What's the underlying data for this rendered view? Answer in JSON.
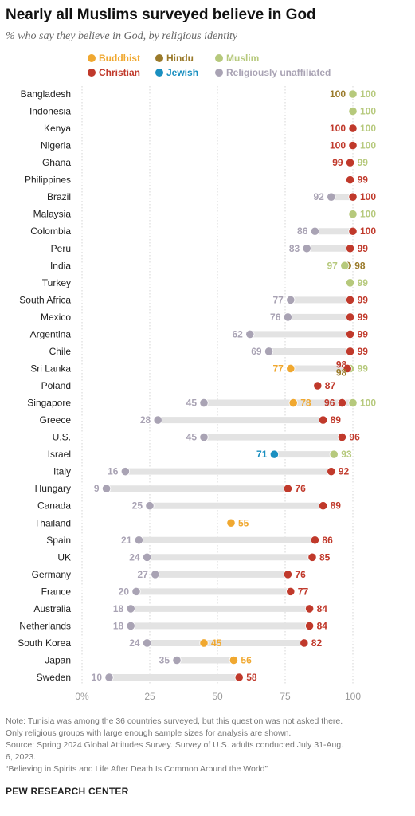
{
  "title": "Nearly all Muslims surveyed believe in God",
  "subtitle": "% who say they believe in God, by religious identity",
  "note_lines": [
    "Note: Tunisia was among the 36 countries surveyed, but this question was not asked there.",
    "Only religious groups with large enough sample sizes for analysis are shown.",
    "Source: Spring 2024 Global Attitudes Survey. Survey of U.S. adults conducted July 31-Aug.",
    "6, 2023.",
    "“Believing in Spirits and Life After Death Is Common Around the World”"
  ],
  "source_org": "PEW RESEARCH CENTER",
  "colors": {
    "Buddhist": "#f0a830",
    "Hindu": "#9a7a2a",
    "Muslim": "#b6c97c",
    "Christian": "#c0392b",
    "Jewish": "#1a8fc0",
    "Religiously unaffiliated": "#a9a3b4",
    "range_bar": "#e3e3e3",
    "gridline": "#d4d4d4"
  },
  "chart_data": {
    "type": "dot",
    "title": "Nearly all Muslims surveyed believe in God",
    "subtitle": "% who say they believe in God, by religious identity",
    "x_ticks": [
      "0%",
      "25",
      "50",
      "75",
      "100"
    ],
    "xlim": [
      0,
      100
    ],
    "grid": true,
    "legend_position": "top",
    "legend": [
      "Buddhist",
      "Hindu",
      "Muslim",
      "Christian",
      "Jewish",
      "Religiously unaffiliated"
    ],
    "categories": [
      "Bangladesh",
      "Indonesia",
      "Kenya",
      "Nigeria",
      "Ghana",
      "Philippines",
      "Brazil",
      "Malaysia",
      "Colombia",
      "Peru",
      "India",
      "Turkey",
      "South Africa",
      "Mexico",
      "Argentina",
      "Chile",
      "Sri Lanka",
      "Poland",
      "Singapore",
      "Greece",
      "U.S.",
      "Israel",
      "Italy",
      "Hungary",
      "Canada",
      "Thailand",
      "Spain",
      "UK",
      "Germany",
      "France",
      "Australia",
      "Netherlands",
      "South Korea",
      "Japan",
      "Sweden"
    ],
    "series": [
      {
        "name": "Buddhist",
        "values": [
          null,
          null,
          null,
          null,
          null,
          null,
          null,
          null,
          null,
          null,
          null,
          null,
          null,
          null,
          null,
          null,
          77,
          null,
          78,
          null,
          null,
          null,
          null,
          null,
          null,
          55,
          null,
          null,
          null,
          null,
          null,
          null,
          45,
          56,
          null
        ]
      },
      {
        "name": "Hindu",
        "values": [
          100,
          null,
          null,
          null,
          null,
          null,
          null,
          null,
          null,
          null,
          98,
          null,
          null,
          null,
          null,
          null,
          98,
          null,
          null,
          null,
          null,
          null,
          null,
          null,
          null,
          null,
          null,
          null,
          null,
          null,
          null,
          null,
          null,
          null,
          null
        ]
      },
      {
        "name": "Muslim",
        "values": [
          100,
          100,
          100,
          100,
          99,
          null,
          null,
          100,
          null,
          null,
          97,
          99,
          null,
          null,
          null,
          null,
          99,
          null,
          100,
          null,
          null,
          93,
          null,
          null,
          null,
          null,
          null,
          null,
          null,
          null,
          null,
          null,
          null,
          null,
          null
        ]
      },
      {
        "name": "Christian",
        "values": [
          null,
          null,
          100,
          100,
          99,
          99,
          100,
          null,
          100,
          99,
          null,
          null,
          99,
          99,
          99,
          99,
          98,
          87,
          96,
          89,
          96,
          null,
          92,
          76,
          89,
          null,
          86,
          85,
          76,
          77,
          84,
          84,
          82,
          null,
          58
        ]
      },
      {
        "name": "Jewish",
        "values": [
          null,
          null,
          null,
          null,
          null,
          null,
          null,
          null,
          null,
          null,
          null,
          null,
          null,
          null,
          null,
          null,
          null,
          null,
          null,
          null,
          null,
          71,
          null,
          null,
          null,
          null,
          null,
          null,
          null,
          null,
          null,
          null,
          null,
          null,
          null
        ]
      },
      {
        "name": "Religiously unaffiliated",
        "values": [
          null,
          null,
          null,
          null,
          null,
          null,
          92,
          null,
          86,
          83,
          null,
          null,
          77,
          76,
          62,
          69,
          null,
          null,
          45,
          28,
          45,
          null,
          16,
          9,
          25,
          null,
          21,
          24,
          27,
          20,
          18,
          18,
          24,
          35,
          10
        ]
      }
    ],
    "label_values": [
      [
        {
          "s": "Hindu",
          "v": "100",
          "side": "left"
        },
        {
          "s": "Muslim",
          "v": "100",
          "side": "right"
        }
      ],
      [
        {
          "s": "Muslim",
          "v": "100",
          "side": "right"
        }
      ],
      [
        {
          "s": "Christian",
          "v": "100",
          "side": "left"
        },
        {
          "s": "Muslim",
          "v": "100",
          "side": "right"
        }
      ],
      [
        {
          "s": "Christian",
          "v": "100",
          "side": "left"
        },
        {
          "s": "Muslim",
          "v": "100",
          "side": "right"
        }
      ],
      [
        {
          "s": "Christian",
          "v": "99",
          "side": "left"
        },
        {
          "s": "Muslim",
          "v": "99",
          "side": "right"
        }
      ],
      [
        {
          "s": "Christian",
          "v": "99",
          "side": "right"
        }
      ],
      [
        {
          "s": "Religiously unaffiliated",
          "v": "92",
          "side": "left"
        },
        {
          "s": "Christian",
          "v": "100",
          "side": "right"
        }
      ],
      [
        {
          "s": "Muslim",
          "v": "100",
          "side": "right"
        }
      ],
      [
        {
          "s": "Religiously unaffiliated",
          "v": "86",
          "side": "left"
        },
        {
          "s": "Christian",
          "v": "100",
          "side": "right"
        }
      ],
      [
        {
          "s": "Religiously unaffiliated",
          "v": "83",
          "side": "left"
        },
        {
          "s": "Christian",
          "v": "99",
          "side": "right"
        }
      ],
      [
        {
          "s": "Muslim",
          "v": "97",
          "side": "left"
        },
        {
          "s": "Hindu",
          "v": "98",
          "side": "right"
        }
      ],
      [
        {
          "s": "Muslim",
          "v": "99",
          "side": "right"
        }
      ],
      [
        {
          "s": "Religiously unaffiliated",
          "v": "77",
          "side": "left"
        },
        {
          "s": "Christian",
          "v": "99",
          "side": "right"
        }
      ],
      [
        {
          "s": "Religiously unaffiliated",
          "v": "76",
          "side": "left"
        },
        {
          "s": "Christian",
          "v": "99",
          "side": "right"
        }
      ],
      [
        {
          "s": "Religiously unaffiliated",
          "v": "62",
          "side": "left"
        },
        {
          "s": "Christian",
          "v": "99",
          "side": "right"
        }
      ],
      [
        {
          "s": "Religiously unaffiliated",
          "v": "69",
          "side": "left"
        },
        {
          "s": "Christian",
          "v": "99",
          "side": "right"
        }
      ],
      [
        {
          "s": "Buddhist",
          "v": "77",
          "side": "left"
        },
        {
          "s": "Christian",
          "v": "98",
          "side": "above"
        },
        {
          "s": "Hindu",
          "v": "98",
          "side": "below"
        },
        {
          "s": "Muslim",
          "v": "99",
          "side": "right"
        }
      ],
      [
        {
          "s": "Christian",
          "v": "87",
          "side": "right"
        }
      ],
      [
        {
          "s": "Religiously unaffiliated",
          "v": "45",
          "side": "left"
        },
        {
          "s": "Buddhist",
          "v": "78",
          "side": "right"
        },
        {
          "s": "Christian",
          "v": "96",
          "side": "left"
        },
        {
          "s": "Muslim",
          "v": "100",
          "side": "right"
        }
      ],
      [
        {
          "s": "Religiously unaffiliated",
          "v": "28",
          "side": "left"
        },
        {
          "s": "Christian",
          "v": "89",
          "side": "right"
        }
      ],
      [
        {
          "s": "Religiously unaffiliated",
          "v": "45",
          "side": "left"
        },
        {
          "s": "Christian",
          "v": "96",
          "side": "right"
        }
      ],
      [
        {
          "s": "Jewish",
          "v": "71",
          "side": "left"
        },
        {
          "s": "Muslim",
          "v": "93",
          "side": "right"
        }
      ],
      [
        {
          "s": "Religiously unaffiliated",
          "v": "16",
          "side": "left"
        },
        {
          "s": "Christian",
          "v": "92",
          "side": "right"
        }
      ],
      [
        {
          "s": "Religiously unaffiliated",
          "v": "9",
          "side": "left"
        },
        {
          "s": "Christian",
          "v": "76",
          "side": "right"
        }
      ],
      [
        {
          "s": "Religiously unaffiliated",
          "v": "25",
          "side": "left"
        },
        {
          "s": "Christian",
          "v": "89",
          "side": "right"
        }
      ],
      [
        {
          "s": "Buddhist",
          "v": "55",
          "side": "right"
        }
      ],
      [
        {
          "s": "Religiously unaffiliated",
          "v": "21",
          "side": "left"
        },
        {
          "s": "Christian",
          "v": "86",
          "side": "right"
        }
      ],
      [
        {
          "s": "Religiously unaffiliated",
          "v": "24",
          "side": "left"
        },
        {
          "s": "Christian",
          "v": "85",
          "side": "right"
        }
      ],
      [
        {
          "s": "Religiously unaffiliated",
          "v": "27",
          "side": "left"
        },
        {
          "s": "Christian",
          "v": "76",
          "side": "right"
        }
      ],
      [
        {
          "s": "Religiously unaffiliated",
          "v": "20",
          "side": "left"
        },
        {
          "s": "Christian",
          "v": "77",
          "side": "right"
        }
      ],
      [
        {
          "s": "Religiously unaffiliated",
          "v": "18",
          "side": "left"
        },
        {
          "s": "Christian",
          "v": "84",
          "side": "right"
        }
      ],
      [
        {
          "s": "Religiously unaffiliated",
          "v": "18",
          "side": "left"
        },
        {
          "s": "Christian",
          "v": "84",
          "side": "right"
        }
      ],
      [
        {
          "s": "Religiously unaffiliated",
          "v": "24",
          "side": "left"
        },
        {
          "s": "Buddhist",
          "v": "45",
          "side": "right"
        },
        {
          "s": "Christian",
          "v": "82",
          "side": "right"
        }
      ],
      [
        {
          "s": "Religiously unaffiliated",
          "v": "35",
          "side": "left"
        },
        {
          "s": "Buddhist",
          "v": "56",
          "side": "right"
        }
      ],
      [
        {
          "s": "Religiously unaffiliated",
          "v": "10",
          "side": "left"
        },
        {
          "s": "Christian",
          "v": "58",
          "side": "right"
        }
      ]
    ]
  }
}
